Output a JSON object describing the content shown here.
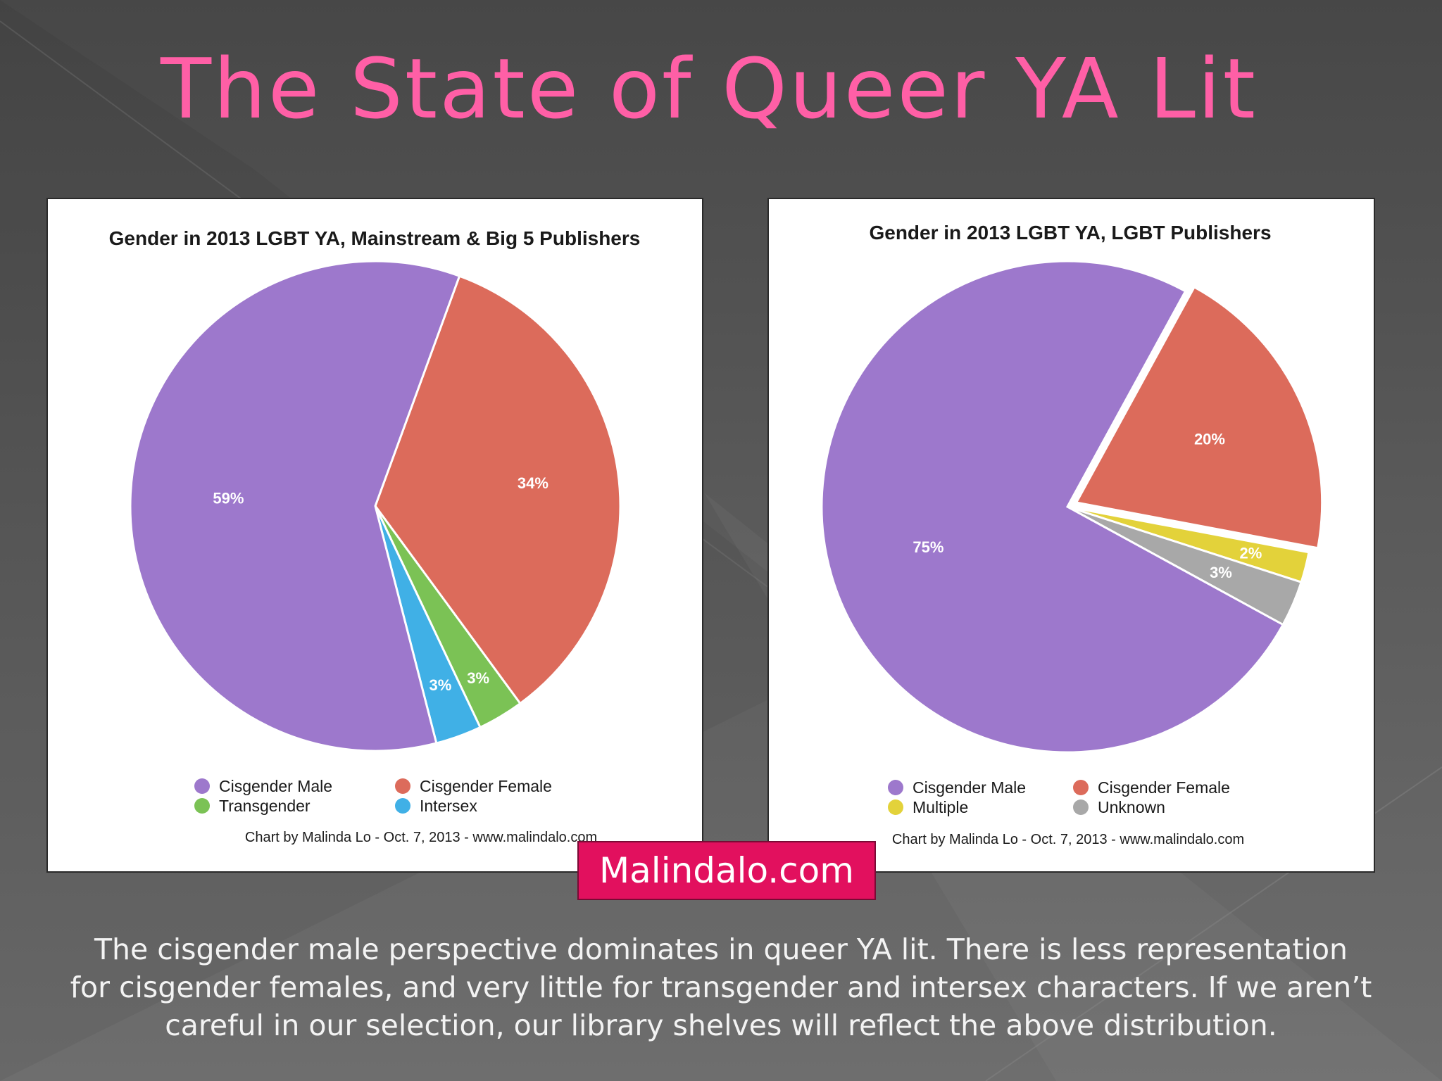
{
  "slide": {
    "title": "The State of Queer YA Lit",
    "badge": "Malindalo.com",
    "caption_lines": [
      "The cisgender male perspective dominates  in queer YA lit. There is less representation",
      "for cisgender females, and very little for transgender and intersex characters. If we aren’t",
      "careful in our selection, our library shelves will reflect the above distribution."
    ]
  },
  "chart_data": [
    {
      "type": "pie",
      "title": "Gender in 2013 LGBT YA, Mainstream & Big 5 Publishers",
      "credit": "Chart by Malinda Lo - Oct. 7, 2013 - www.malindalo.com",
      "legend_position": "bottom",
      "slices": [
        {
          "name": "Cisgender Female",
          "value": 34,
          "label": "34%",
          "color": "#dc6b5b"
        },
        {
          "name": "Transgender",
          "value": 3,
          "label": "3%",
          "color": "#7bc255"
        },
        {
          "name": "Intersex",
          "value": 3,
          "label": "3%",
          "color": "#40b0e6"
        },
        {
          "name": "Cisgender Male",
          "value": 59,
          "label": "59%",
          "color": "#9d78cc"
        }
      ],
      "legend": [
        {
          "name": "Cisgender Male",
          "color": "#9d78cc"
        },
        {
          "name": "Cisgender Female",
          "color": "#dc6b5b"
        },
        {
          "name": "Transgender",
          "color": "#7bc255"
        },
        {
          "name": "Intersex",
          "color": "#40b0e6"
        }
      ]
    },
    {
      "type": "pie",
      "title": "Gender in 2013 LGBT YA, LGBT Publishers",
      "credit": "Chart by Malinda Lo - Oct. 7, 2013 - www.malindalo.com",
      "legend_position": "bottom",
      "slices": [
        {
          "name": "Cisgender Female",
          "value": 20,
          "label": "20%",
          "color": "#dc6b5b",
          "exploded": true
        },
        {
          "name": "Multiple",
          "value": 2,
          "label": "2%",
          "color": "#e3d23a"
        },
        {
          "name": "Unknown",
          "value": 3,
          "label": "3%",
          "color": "#a8a8a8"
        },
        {
          "name": "Cisgender Male",
          "value": 75,
          "label": "75%",
          "color": "#9d78cc"
        }
      ],
      "legend": [
        {
          "name": "Cisgender Male",
          "color": "#9d78cc"
        },
        {
          "name": "Cisgender Female",
          "color": "#dc6b5b"
        },
        {
          "name": "Multiple",
          "color": "#e3d23a"
        },
        {
          "name": "Unknown",
          "color": "#a8a8a8"
        }
      ]
    }
  ]
}
